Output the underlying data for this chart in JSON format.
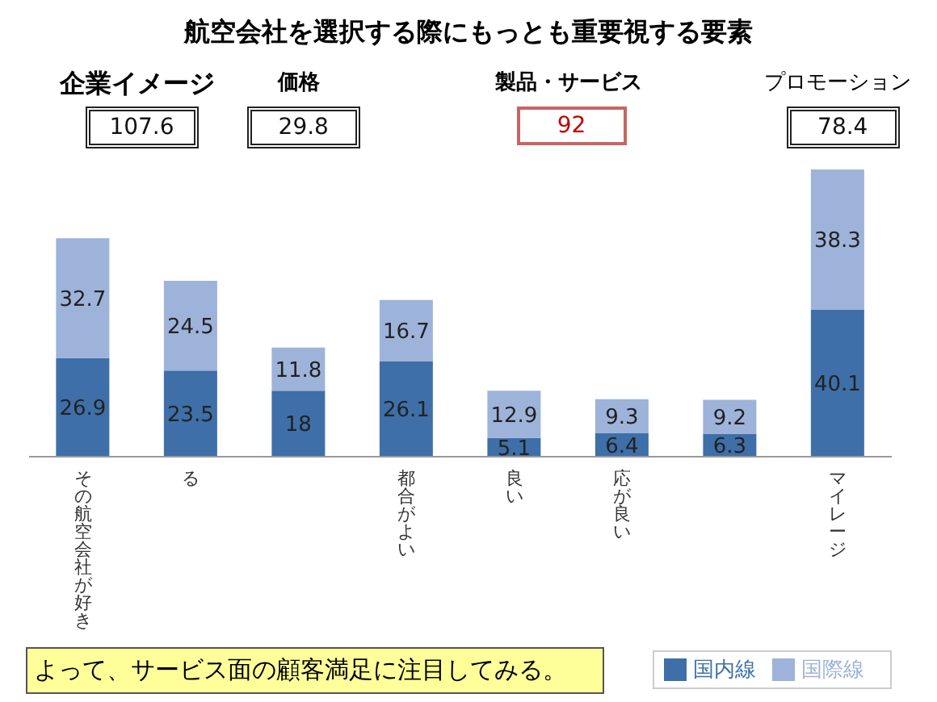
{
  "chart_data": {
    "type": "bar",
    "title": "航空会社を選択する際にもっとも重要視する要素",
    "categories": [
      "その航空会社が好き",
      "る",
      null,
      "都合がよい",
      "良い",
      "応が良い",
      null,
      "マイレージ"
    ],
    "series": [
      {
        "name": "国内線",
        "color": "#3e6fa8",
        "values": [
          26.9,
          23.5,
          18,
          26.1,
          5.1,
          6.4,
          6.3,
          40.1
        ]
      },
      {
        "name": "国際線",
        "color": "#9db3da",
        "values": [
          32.7,
          24.5,
          11.8,
          16.7,
          12.9,
          9.3,
          9.2,
          38.3
        ]
      }
    ],
    "stacked": true,
    "data_labels": true,
    "grid": false,
    "legend": "bottom right",
    "annotations": [
      "企業イメージ",
      "価格",
      "製品・サービス",
      "プロモーション",
      "107.6",
      "29.8",
      "92",
      "78.4",
      "よって、サービス面の顧客満足に注目してみる。"
    ]
  }
}
